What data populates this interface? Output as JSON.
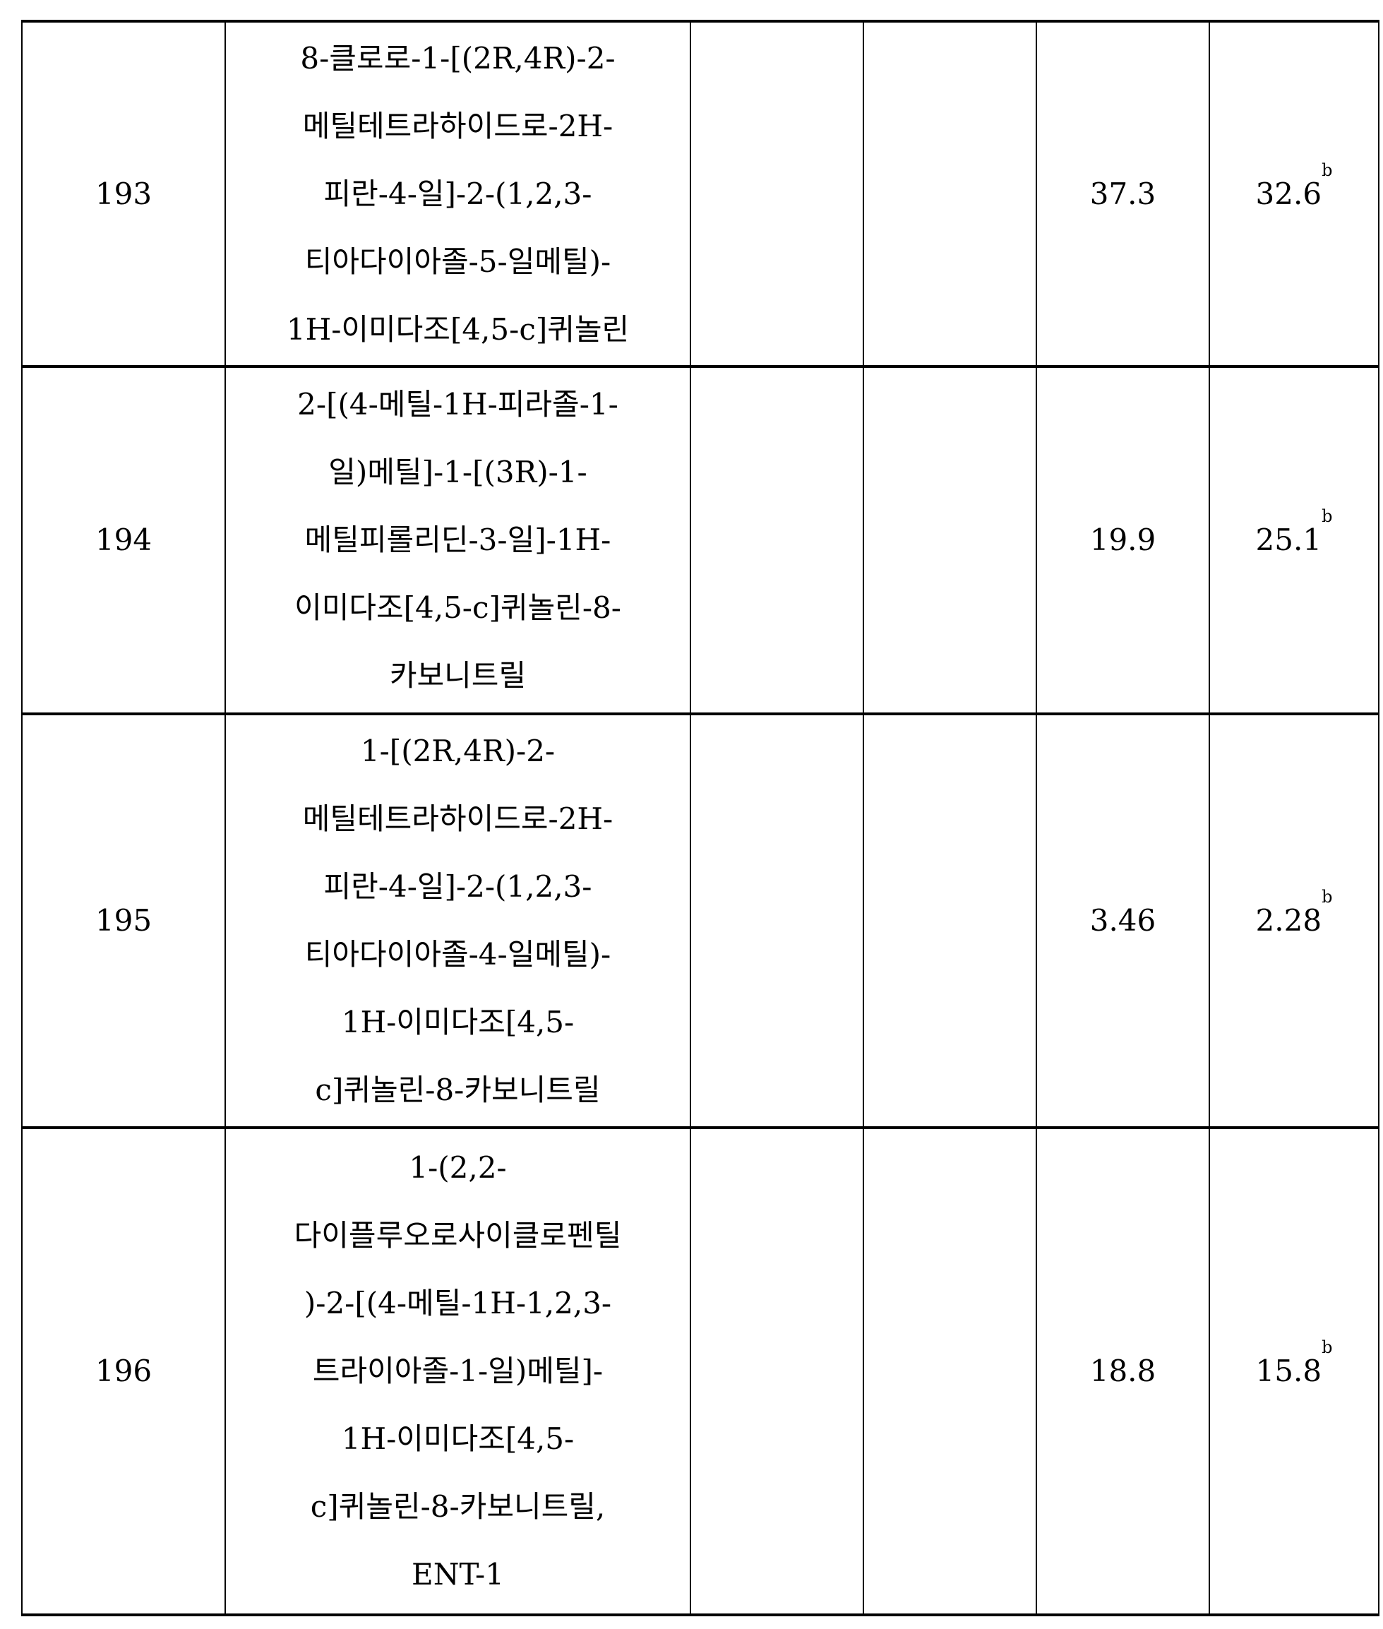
{
  "rows": [
    {
      "id": "193",
      "name_lines": [
        "8-클로로-1-[(2R,4R)-2-",
        "메틸테트라하이드로-2H-",
        "피란-4-일]-2-(1,2,3-",
        "티아다이아졸-5-일메틸)-",
        "1H-이미다조[4,5-c]퀴놀린"
      ],
      "col3": "",
      "col4": "",
      "col5": "37.3",
      "col6": "32.6",
      "col6_sup": "b"
    },
    {
      "id": "194",
      "name_lines": [
        "2-[(4-메틸-1H-피라졸-1-",
        "일)메틸]-1-[(3R)-1-",
        "메틸피롤리딘-3-일]-1H-",
        "이미다조[4,5-c]퀴놀린-8-",
        "카보니트릴"
      ],
      "col3": "",
      "col4": "",
      "col5": "19.9",
      "col6": "25.1",
      "col6_sup": "b"
    },
    {
      "id": "195",
      "name_lines": [
        "1-[(2R,4R)-2-",
        "메틸테트라하이드로-2H-",
        "피란-4-일]-2-(1,2,3-",
        "티아다이아졸-4-일메틸)-",
        "1H-이미다조[4,5-",
        "c]퀴놀린-8-카보니트릴"
      ],
      "col3": "",
      "col4": "",
      "col5": "3.46",
      "col6": "2.28",
      "col6_sup": "b"
    },
    {
      "id": "196",
      "name_lines": [
        "1-(2,2-",
        "다이플루오로사이클로펜틸",
        ")-2-[(4-메틸-1H-1,2,3-",
        "트라이아졸-1-일)메틸]-",
        "1H-이미다조[4,5-",
        "c]퀴놀린-8-카보니트릴,",
        "ENT-1"
      ],
      "col3": "",
      "col4": "",
      "col5": "18.8",
      "col6": "15.8",
      "col6_sup": "b"
    }
  ]
}
